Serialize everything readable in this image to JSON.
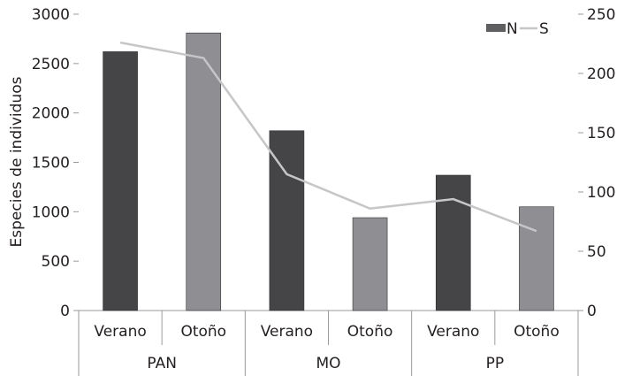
{
  "chart_data": {
    "type": "bar",
    "groups": [
      {
        "label": "PAN",
        "categories": [
          "Verano",
          "Otoño"
        ]
      },
      {
        "label": "MO",
        "categories": [
          "Verano",
          "Otoño"
        ]
      },
      {
        "label": "PP",
        "categories": [
          "Verano",
          "Otoño"
        ]
      }
    ],
    "series": [
      {
        "name": "N",
        "kind": "bar",
        "axis": "left",
        "values": [
          2620,
          2810,
          1820,
          940,
          1370,
          1050
        ],
        "colors": [
          "#454547",
          "#8f8f93",
          "#454547",
          "#8f8f93",
          "#454547",
          "#8f8f93"
        ]
      },
      {
        "name": "S",
        "kind": "line",
        "axis": "right",
        "values": [
          226,
          213,
          115,
          86,
          94,
          67
        ],
        "color": "#c6c6c8"
      }
    ],
    "ylabel": "Especies de individuos",
    "ylim_left": [
      0,
      3000
    ],
    "yticks_left": [
      "0",
      "500",
      "1000",
      "1500",
      "2000",
      "2500",
      "3000"
    ],
    "ylim_right": [
      0,
      250
    ],
    "yticks_right": [
      "0",
      "50",
      "100",
      "150",
      "200",
      "250"
    ],
    "legend_position": "top-right",
    "grid": false
  }
}
